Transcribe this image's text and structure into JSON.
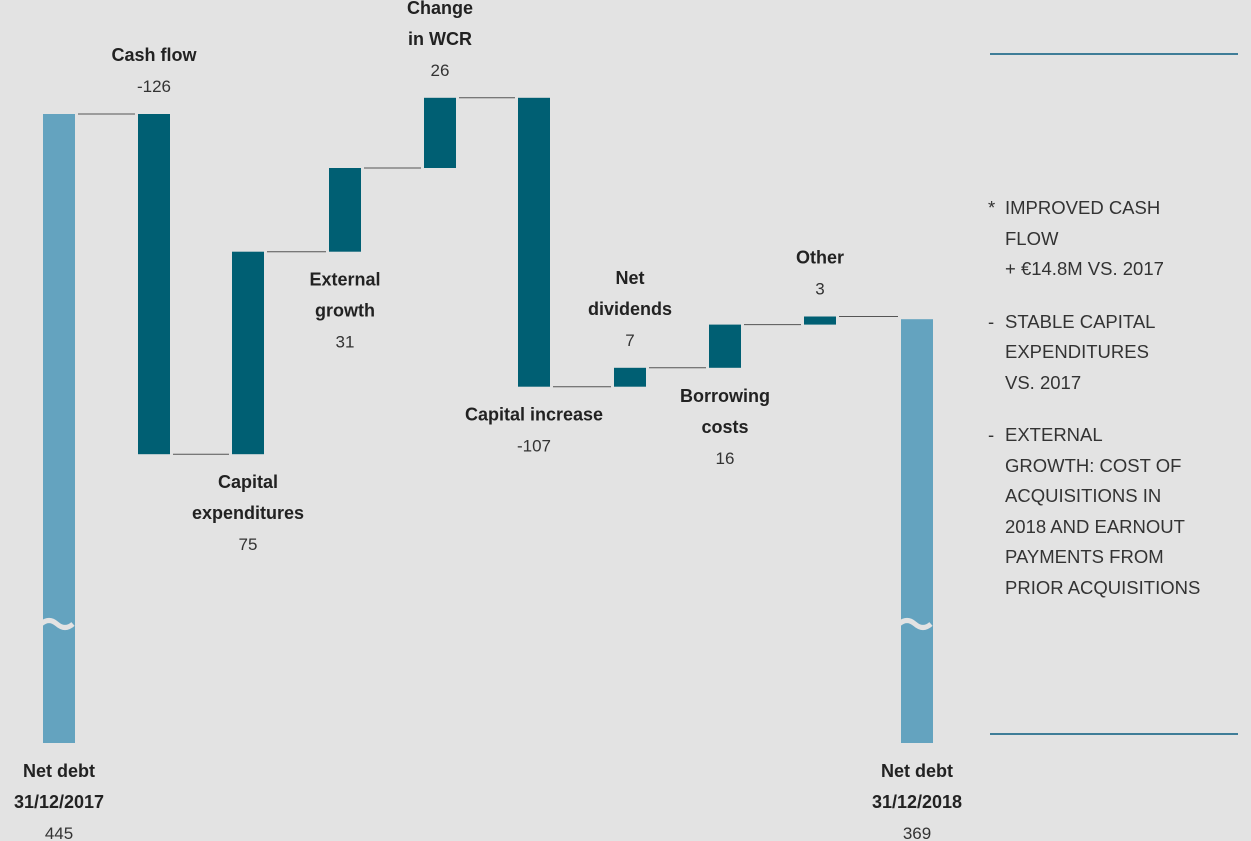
{
  "chart_data": {
    "type": "waterfall",
    "steps": [
      {
        "label": [
          "Net debt",
          "31/12/2017"
        ],
        "value": "445",
        "kind": "total",
        "level": 445
      },
      {
        "label": [
          "Cash flow"
        ],
        "value": "-126",
        "kind": "delta",
        "from": 445,
        "to": 319
      },
      {
        "label": [
          "Capital",
          "expenditures"
        ],
        "value": "75",
        "kind": "delta",
        "from": 319,
        "to": 394
      },
      {
        "label": [
          "External",
          "growth"
        ],
        "value": "31",
        "kind": "delta",
        "from": 394,
        "to": 425
      },
      {
        "label": [
          "Change",
          "in WCR"
        ],
        "value": "26",
        "kind": "delta",
        "from": 425,
        "to": 451
      },
      {
        "label": [
          "Capital increase"
        ],
        "value": "-107",
        "kind": "delta",
        "from": 451,
        "to": 344
      },
      {
        "label": [
          "Net",
          "dividends"
        ],
        "value": "7",
        "kind": "delta",
        "from": 344,
        "to": 351
      },
      {
        "label": [
          "Borrowing",
          "costs"
        ],
        "value": "16",
        "kind": "delta",
        "from": 351,
        "to": 367
      },
      {
        "label": [
          "Other"
        ],
        "value": "3",
        "kind": "delta",
        "from": 367,
        "to": 370
      },
      {
        "label": [
          "Net debt",
          "31/12/2018"
        ],
        "value": "369",
        "kind": "total",
        "level": 369
      }
    ],
    "axis_break": true,
    "colors": {
      "total": "#64a3bf",
      "delta": "#005f73",
      "connector": "#555555",
      "background": "#e3e3e3"
    }
  },
  "notes": [
    {
      "bullet": "*",
      "text": "IMPROVED CASH\nFLOW\n+ €14.8M VS. 2017"
    },
    {
      "bullet": "-",
      "text": "STABLE CAPITAL\nEXPENDITURES\nVS. 2017"
    },
    {
      "bullet": "-",
      "text": "EXTERNAL\nGROWTH: COST OF\nACQUISITIONS IN\n2018 AND EARNOUT\nPAYMENTS FROM\nPRIOR ACQUISITIONS"
    }
  ]
}
